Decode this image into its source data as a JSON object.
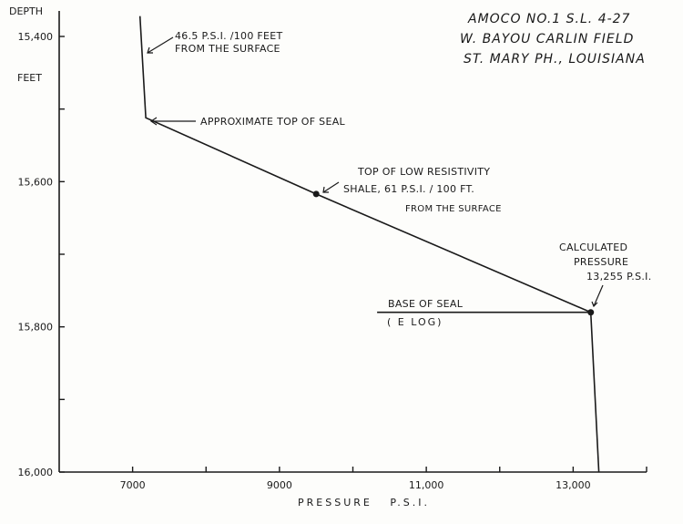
{
  "chart_data": {
    "type": "line",
    "title_lines": [
      "AMOCO NO.1 S.L. 4-27",
      "W. BAYOU CARLIN FIELD",
      "ST. MARY PH., LOUISIANA"
    ],
    "xlabel": "PRESSURE   P.S.I.",
    "ylabel_top": "DEPTH",
    "ylabel_unit": "FEET",
    "xlim": [
      6000,
      14000
    ],
    "ylim": [
      16000,
      15400
    ],
    "x_ticks": [
      7000,
      8000,
      9000,
      10000,
      11000,
      12000,
      13000,
      14000
    ],
    "x_tick_labels": [
      {
        "value": 7000,
        "label": "7000"
      },
      {
        "value": 9000,
        "label": "9000"
      },
      {
        "value": 11000,
        "label": "11,000"
      },
      {
        "value": 13000,
        "label": "13,000"
      }
    ],
    "y_ticks": [
      15400,
      15500,
      15600,
      15700,
      15800,
      15900,
      16000
    ],
    "y_tick_labels": [
      {
        "value": 15400,
        "label": "15,400"
      },
      {
        "value": 15600,
        "label": "15,600"
      },
      {
        "value": 15800,
        "label": "15,800"
      },
      {
        "value": 16000,
        "label": "16,000"
      }
    ],
    "series": [
      {
        "points": [
          {
            "x": 7100,
            "y": 15372
          },
          {
            "x": 7180,
            "y": 15512
          },
          {
            "x": 9500,
            "y": 15617
          },
          {
            "x": 13240,
            "y": 15780
          },
          {
            "x": 13350,
            "y": 16000
          }
        ]
      }
    ],
    "markers": [
      {
        "x": 9500,
        "y": 15617
      },
      {
        "x": 13240,
        "y": 15780
      }
    ],
    "base_of_seal_line": {
      "x1": 10330,
      "x2": 13240,
      "y": 15780
    },
    "annotations": [
      {
        "lines": [
          "46.5 P.S.I. /100 FEET",
          "FROM THE SURFACE"
        ]
      },
      {
        "lines": [
          "APPROXIMATE TOP OF SEAL"
        ]
      },
      {
        "lines": [
          "TOP OF LOW RESISTIVITY",
          "SHALE, 61 P.S.I. / 100 FT."
        ]
      },
      {
        "lines": [
          "FROM THE SURFACE"
        ]
      },
      {
        "lines": [
          "CALCULATED",
          "PRESSURE",
          "13,255 P.S.I."
        ]
      },
      {
        "lines": [
          "BASE OF SEAL"
        ]
      },
      {
        "lines": [
          "( E LOG)"
        ]
      }
    ],
    "grid": false
  }
}
